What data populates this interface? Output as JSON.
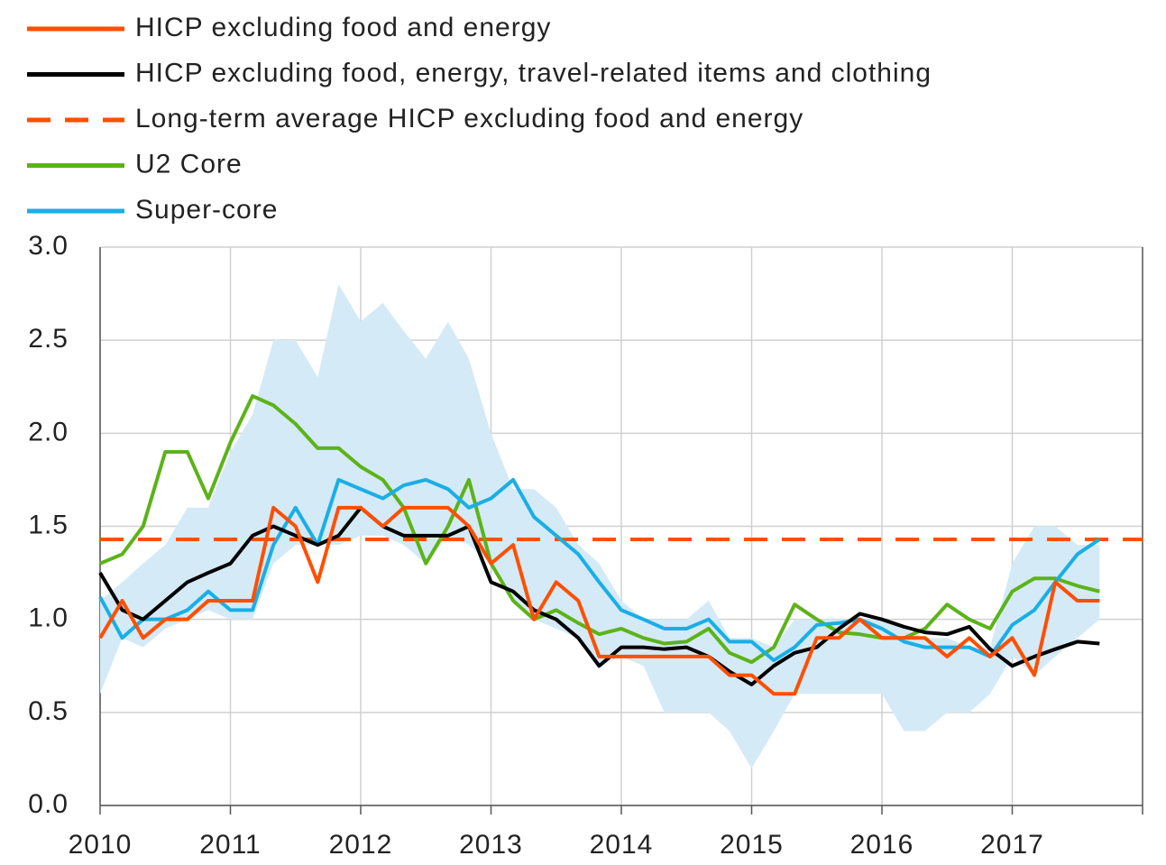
{
  "chart_data": {
    "type": "line",
    "x": [
      2010.0,
      2010.17,
      2010.33,
      2010.5,
      2010.67,
      2010.83,
      2011.0,
      2011.17,
      2011.33,
      2011.5,
      2011.67,
      2011.83,
      2012.0,
      2012.17,
      2012.33,
      2012.5,
      2012.67,
      2012.83,
      2013.0,
      2013.17,
      2013.33,
      2013.5,
      2013.67,
      2013.83,
      2014.0,
      2014.17,
      2014.33,
      2014.5,
      2014.67,
      2014.83,
      2015.0,
      2015.17,
      2015.33,
      2015.5,
      2015.67,
      2015.83,
      2016.0,
      2016.17,
      2016.33,
      2016.5,
      2016.67,
      2016.83,
      2017.0,
      2017.17,
      2017.33,
      2017.5,
      2017.67
    ],
    "band": {
      "color": "#d4eaf7",
      "upper": [
        1.1,
        1.2,
        1.3,
        1.4,
        1.6,
        1.6,
        1.9,
        2.1,
        2.5,
        2.5,
        2.3,
        2.8,
        2.6,
        2.7,
        2.55,
        2.4,
        2.6,
        2.4,
        2.0,
        1.7,
        1.7,
        1.6,
        1.4,
        1.3,
        1.1,
        1.0,
        1.0,
        1.0,
        1.1,
        0.9,
        0.9,
        0.85,
        1.0,
        1.0,
        1.0,
        1.0,
        1.0,
        0.95,
        0.9,
        0.9,
        0.85,
        0.85,
        1.3,
        1.5,
        1.5,
        1.4,
        1.4
      ],
      "lower": [
        0.6,
        0.9,
        0.85,
        0.95,
        1.0,
        1.05,
        1.0,
        1.0,
        1.3,
        1.4,
        1.4,
        1.4,
        1.45,
        1.45,
        1.4,
        1.3,
        1.45,
        1.4,
        1.3,
        1.1,
        1.0,
        0.95,
        0.9,
        0.75,
        0.8,
        0.75,
        0.5,
        0.5,
        0.5,
        0.4,
        0.2,
        0.4,
        0.6,
        0.6,
        0.6,
        0.6,
        0.6,
        0.4,
        0.4,
        0.5,
        0.5,
        0.6,
        0.8,
        0.7,
        0.8,
        0.9,
        1.0
      ]
    },
    "series": [
      {
        "name": "HICP excluding food and energy",
        "color": "#ff4f00",
        "values": [
          0.9,
          1.1,
          0.9,
          1.0,
          1.0,
          1.1,
          1.1,
          1.1,
          1.6,
          1.5,
          1.2,
          1.6,
          1.6,
          1.5,
          1.6,
          1.6,
          1.6,
          1.5,
          1.3,
          1.4,
          1.0,
          1.2,
          1.1,
          0.8,
          0.8,
          0.8,
          0.8,
          0.8,
          0.8,
          0.7,
          0.7,
          0.6,
          0.6,
          0.9,
          0.9,
          1.0,
          0.9,
          0.9,
          0.9,
          0.8,
          0.9,
          0.8,
          0.9,
          0.7,
          1.2,
          1.1,
          1.1
        ]
      },
      {
        "name": "HICP excluding food, energy, travel-related items and clothing",
        "color": "#000000",
        "values": [
          1.25,
          1.05,
          1.0,
          1.1,
          1.2,
          1.25,
          1.3,
          1.45,
          1.5,
          1.45,
          1.4,
          1.45,
          1.6,
          1.5,
          1.45,
          1.45,
          1.45,
          1.5,
          1.2,
          1.15,
          1.05,
          1.0,
          0.9,
          0.75,
          0.85,
          0.85,
          0.84,
          0.85,
          0.8,
          0.72,
          0.65,
          0.75,
          0.82,
          0.85,
          0.95,
          1.03,
          1.0,
          0.96,
          0.93,
          0.92,
          0.96,
          0.84,
          0.75,
          0.8,
          0.84,
          0.88,
          0.87
        ]
      },
      {
        "name": "Long-term average HICP excluding food and energy",
        "color": "#ff4f00",
        "value": 1.43,
        "style": "dashed"
      },
      {
        "name": "U2 Core",
        "color": "#5cb318",
        "values": [
          1.3,
          1.35,
          1.5,
          1.9,
          1.9,
          1.65,
          1.95,
          2.2,
          2.15,
          2.05,
          1.92,
          1.92,
          1.82,
          1.75,
          1.6,
          1.3,
          1.5,
          1.75,
          1.3,
          1.1,
          1.0,
          1.05,
          0.98,
          0.92,
          0.95,
          0.9,
          0.87,
          0.88,
          0.95,
          0.82,
          0.77,
          0.85,
          1.08,
          1.0,
          0.93,
          0.92,
          0.9,
          0.9,
          0.95,
          1.08,
          1.0,
          0.95,
          1.15,
          1.22,
          1.22,
          1.18,
          1.15
        ]
      },
      {
        "name": "Super-core",
        "color": "#1aaee6",
        "values": [
          1.12,
          0.9,
          1.0,
          1.0,
          1.05,
          1.15,
          1.05,
          1.05,
          1.4,
          1.6,
          1.4,
          1.75,
          1.7,
          1.65,
          1.72,
          1.75,
          1.7,
          1.6,
          1.65,
          1.75,
          1.55,
          1.45,
          1.35,
          1.2,
          1.05,
          1.0,
          0.95,
          0.95,
          1.0,
          0.88,
          0.88,
          0.78,
          0.85,
          0.97,
          0.98,
          1.0,
          0.95,
          0.88,
          0.85,
          0.85,
          0.85,
          0.8,
          0.97,
          1.05,
          1.2,
          1.35,
          1.43
        ]
      }
    ],
    "xlim": [
      2010,
      2018
    ],
    "xticks": [
      2010,
      2011,
      2012,
      2013,
      2014,
      2015,
      2016,
      2017
    ],
    "ylim": [
      0,
      3
    ],
    "yticks": [
      {
        "value": 0,
        "label": "0.0"
      },
      {
        "value": 0.5,
        "label": "0.5"
      },
      {
        "value": 1,
        "label": "1.0"
      },
      {
        "value": 1.5,
        "label": "1.5"
      },
      {
        "value": 2,
        "label": "2.0"
      },
      {
        "value": 2.5,
        "label": "2.5"
      },
      {
        "value": 3,
        "label": "3.0"
      }
    ],
    "grid": true,
    "legend": "top"
  }
}
